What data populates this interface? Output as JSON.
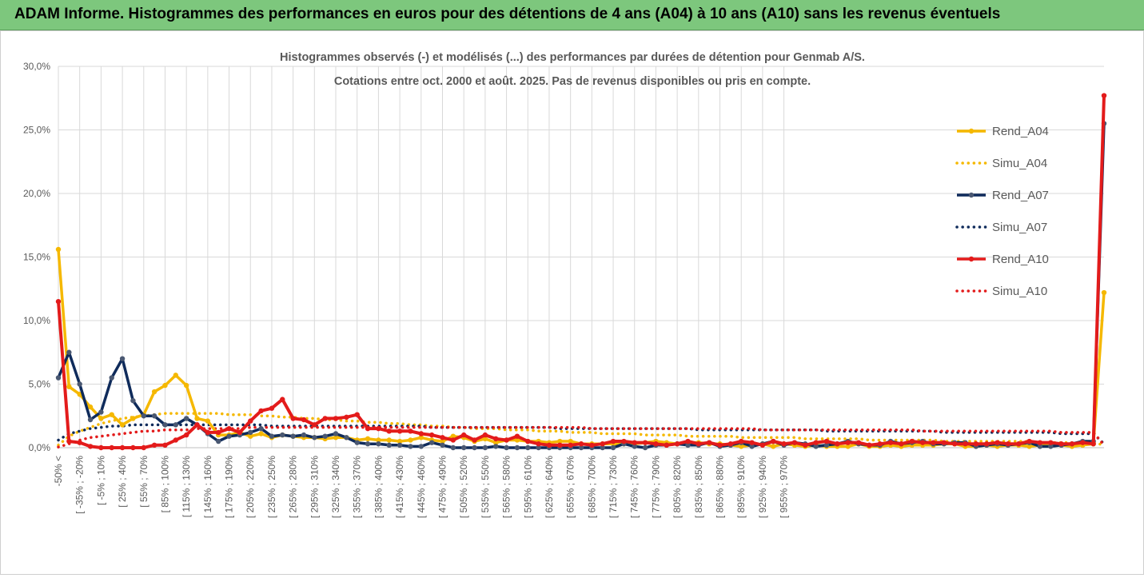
{
  "banner": {
    "title": "ADAM Informe. Histogrammes des performances en euros pour des détentions de 4 ans (A04) à 10 ans (A10) sans les revenus éventuels",
    "color": "#7dc77d"
  },
  "chart_data": {
    "type": "line",
    "title_line1": "Histogrammes observés (-) et modélisés (...) des performances par durées de détention pour Genmab A/S.",
    "title_line2": "Cotations entre oct. 2000 et août. 2025. Pas de revenus disponibles ou pris en compte.",
    "xlabel": "",
    "ylabel": "",
    "ylim": [
      0,
      30
    ],
    "y_ticks": [
      "0,0%",
      "5,0%",
      "10,0%",
      "15,0%",
      "20,0%",
      "25,0%",
      "30,0%"
    ],
    "grid": "vertical and horizontal",
    "legend_position": "right",
    "x_tick_labels": [
      "-50% <",
      "[ -35% ; -20%",
      "[ -5% ; 10%",
      "[ 25% ; 40%",
      "[ 55% ; 70%",
      "[ 85% ; 100%",
      "[ 115% ; 130%",
      "[ 145% ; 160%",
      "[ 175% ; 190%",
      "[ 205% ; 220%",
      "[ 235% ; 250%",
      "[ 265% ; 280%",
      "[ 295% ; 310%",
      "[ 325% ; 340%",
      "[ 355% ; 370%",
      "[ 385% ; 400%",
      "[ 415% ; 430%",
      "[ 445% ; 460%",
      "[ 475% ; 490%",
      "[ 505% ; 520%",
      "[ 535% ; 550%",
      "[ 565% ; 580%",
      "[ 595% ; 610%",
      "[ 625% ; 640%",
      "[ 655% ; 670%",
      "[ 685% ; 700%",
      "[ 715% ; 730%",
      "[ 745% ; 760%",
      "[ 775% ; 790%",
      "[ 805% ; 820%",
      "[ 835% ; 850%",
      "[ 865% ; 880%",
      "[ 895% ; 910%",
      "[ 925% ; 940%",
      "[ 955% ; 970%"
    ],
    "series": [
      {
        "name": "Rend_A04",
        "style": "solid",
        "marker": true,
        "color": "#f5b800",
        "values": [
          15.6,
          4.8,
          4.2,
          3.2,
          2.3,
          2.6,
          1.8,
          2.3,
          2.6,
          4.4,
          4.9,
          5.7,
          4.9,
          2.3,
          2.1,
          1.0,
          1.0,
          1.2,
          0.9,
          1.1,
          0.8,
          1.0,
          0.9,
          0.8,
          0.8,
          0.7,
          0.8,
          0.8,
          0.6,
          0.7,
          0.6,
          0.6,
          0.5,
          0.6,
          0.8,
          0.6,
          0.5,
          0.9,
          0.8,
          0.5,
          0.7,
          0.4,
          0.6,
          0.6,
          0.5,
          0.5,
          0.4,
          0.5,
          0.5,
          0.3,
          0.3,
          0.3,
          0.3,
          0.3,
          0.3,
          0.4,
          0.5,
          0.4,
          0.3,
          0.4,
          0.4,
          0.3,
          0.3,
          0.2,
          0.1,
          0.2,
          0.3,
          0.1,
          0.3,
          0.2,
          0.1,
          0.2,
          0.1,
          0.1,
          0.1,
          0.3,
          0.1,
          0.1,
          0.2,
          0.1,
          0.2,
          0.2,
          0.2,
          0.3,
          0.3,
          0.1,
          0.1,
          0.2,
          0.1,
          0.2,
          0.2,
          0.1,
          0.2,
          0.2,
          0.2,
          0.1,
          0.2,
          0.3,
          12.2
        ]
      },
      {
        "name": "Simu_A04",
        "style": "dotted",
        "marker": false,
        "color": "#f5b800",
        "values": [
          0.2,
          0.9,
          1.3,
          1.6,
          1.9,
          2.1,
          2.3,
          2.4,
          2.5,
          2.6,
          2.7,
          2.7,
          2.7,
          2.7,
          2.7,
          2.7,
          2.6,
          2.6,
          2.6,
          2.5,
          2.5,
          2.4,
          2.4,
          2.3,
          2.3,
          2.2,
          2.2,
          2.1,
          2.1,
          2.0,
          2.0,
          1.9,
          1.9,
          1.8,
          1.8,
          1.7,
          1.7,
          1.6,
          1.6,
          1.5,
          1.5,
          1.5,
          1.4,
          1.4,
          1.4,
          1.3,
          1.3,
          1.3,
          1.2,
          1.2,
          1.2,
          1.1,
          1.1,
          1.1,
          1.1,
          1.0,
          1.0,
          1.0,
          1.0,
          0.9,
          0.9,
          0.9,
          0.9,
          0.9,
          0.8,
          0.8,
          0.8,
          0.8,
          0.8,
          0.8,
          0.7,
          0.7,
          0.7,
          0.7,
          0.7,
          0.7,
          0.6,
          0.6,
          0.6,
          0.6,
          0.6,
          0.6,
          0.6,
          0.5,
          0.5,
          0.5,
          0.5,
          0.5,
          0.5,
          0.5,
          0.5,
          0.5,
          0.4,
          0.4,
          0.4,
          0.4,
          0.4,
          0.4,
          0.2
        ]
      },
      {
        "name": "Rend_A07",
        "style": "solid",
        "marker": true,
        "color": "#0f2b5b",
        "values": [
          5.5,
          7.5,
          5.0,
          2.2,
          2.8,
          5.5,
          7.0,
          3.7,
          2.5,
          2.5,
          1.8,
          1.8,
          2.3,
          1.8,
          1.1,
          0.5,
          0.9,
          1.0,
          1.2,
          1.5,
          0.9,
          1.0,
          0.9,
          1.0,
          0.8,
          0.9,
          1.1,
          0.8,
          0.4,
          0.3,
          0.3,
          0.2,
          0.2,
          0.1,
          0.1,
          0.4,
          0.2,
          0.0,
          0.0,
          0.0,
          0.0,
          0.1,
          0.0,
          0.0,
          0.0,
          0.0,
          0.0,
          0.0,
          0.0,
          0.0,
          0.0,
          0.0,
          0.0,
          0.3,
          0.1,
          0.0,
          0.2,
          0.2,
          0.3,
          0.2,
          0.2,
          0.4,
          0.1,
          0.2,
          0.4,
          0.1,
          0.3,
          0.5,
          0.2,
          0.4,
          0.3,
          0.1,
          0.2,
          0.3,
          0.5,
          0.3,
          0.2,
          0.2,
          0.5,
          0.3,
          0.4,
          0.5,
          0.3,
          0.3,
          0.4,
          0.4,
          0.1,
          0.2,
          0.3,
          0.2,
          0.3,
          0.4,
          0.1,
          0.1,
          0.2,
          0.3,
          0.5,
          0.5,
          25.5
        ]
      },
      {
        "name": "Simu_A07",
        "style": "dotted",
        "marker": false,
        "color": "#0f2b5b",
        "values": [
          0.6,
          1.1,
          1.3,
          1.5,
          1.6,
          1.7,
          1.7,
          1.8,
          1.8,
          1.8,
          1.8,
          1.8,
          1.8,
          1.8,
          1.8,
          1.8,
          1.8,
          1.8,
          1.8,
          1.8,
          1.7,
          1.7,
          1.7,
          1.7,
          1.7,
          1.7,
          1.7,
          1.7,
          1.7,
          1.7,
          1.7,
          1.7,
          1.7,
          1.7,
          1.7,
          1.6,
          1.6,
          1.6,
          1.6,
          1.6,
          1.6,
          1.6,
          1.6,
          1.6,
          1.6,
          1.6,
          1.6,
          1.5,
          1.5,
          1.5,
          1.5,
          1.5,
          1.5,
          1.5,
          1.5,
          1.5,
          1.5,
          1.5,
          1.5,
          1.5,
          1.4,
          1.4,
          1.4,
          1.4,
          1.4,
          1.4,
          1.4,
          1.4,
          1.4,
          1.4,
          1.4,
          1.4,
          1.3,
          1.3,
          1.3,
          1.3,
          1.3,
          1.3,
          1.3,
          1.3,
          1.3,
          1.3,
          1.3,
          1.2,
          1.2,
          1.2,
          1.2,
          1.2,
          1.2,
          1.2,
          1.2,
          1.2,
          1.2,
          1.2,
          1.1,
          1.1,
          1.1,
          1.1,
          0.3
        ]
      },
      {
        "name": "Rend_A10",
        "style": "solid",
        "marker": true,
        "color": "#e31b1b",
        "values": [
          11.5,
          0.5,
          0.4,
          0.1,
          0.0,
          0.0,
          0.0,
          0.0,
          0.0,
          0.2,
          0.2,
          0.6,
          1.0,
          1.8,
          1.2,
          1.2,
          1.5,
          1.2,
          2.1,
          2.9,
          3.1,
          3.8,
          2.3,
          2.2,
          1.8,
          2.3,
          2.3,
          2.4,
          2.6,
          1.5,
          1.5,
          1.3,
          1.3,
          1.3,
          1.1,
          1.0,
          0.8,
          0.6,
          1.0,
          0.6,
          1.0,
          0.7,
          0.6,
          0.9,
          0.5,
          0.3,
          0.2,
          0.2,
          0.2,
          0.3,
          0.2,
          0.3,
          0.5,
          0.5,
          0.4,
          0.4,
          0.3,
          0.2,
          0.3,
          0.5,
          0.3,
          0.4,
          0.2,
          0.3,
          0.5,
          0.4,
          0.2,
          0.5,
          0.3,
          0.4,
          0.2,
          0.4,
          0.5,
          0.3,
          0.4,
          0.4,
          0.2,
          0.3,
          0.4,
          0.3,
          0.5,
          0.4,
          0.4,
          0.4,
          0.3,
          0.3,
          0.3,
          0.3,
          0.4,
          0.3,
          0.3,
          0.5,
          0.4,
          0.4,
          0.3,
          0.3,
          0.4,
          0.3,
          27.7
        ]
      },
      {
        "name": "Simu_A10",
        "style": "dotted",
        "marker": false,
        "color": "#e31b1b",
        "values": [
          0.05,
          0.3,
          0.6,
          0.8,
          0.9,
          1.0,
          1.1,
          1.2,
          1.3,
          1.3,
          1.4,
          1.4,
          1.4,
          1.5,
          1.5,
          1.5,
          1.5,
          1.5,
          1.6,
          1.6,
          1.6,
          1.6,
          1.6,
          1.6,
          1.6,
          1.6,
          1.6,
          1.6,
          1.6,
          1.6,
          1.6,
          1.6,
          1.6,
          1.6,
          1.6,
          1.6,
          1.6,
          1.6,
          1.6,
          1.6,
          1.6,
          1.6,
          1.6,
          1.6,
          1.6,
          1.6,
          1.6,
          1.6,
          1.6,
          1.6,
          1.5,
          1.5,
          1.5,
          1.5,
          1.5,
          1.5,
          1.5,
          1.5,
          1.5,
          1.5,
          1.5,
          1.5,
          1.5,
          1.5,
          1.5,
          1.5,
          1.4,
          1.4,
          1.4,
          1.4,
          1.4,
          1.4,
          1.4,
          1.4,
          1.4,
          1.4,
          1.4,
          1.4,
          1.4,
          1.4,
          1.4,
          1.3,
          1.3,
          1.3,
          1.3,
          1.3,
          1.3,
          1.3,
          1.3,
          1.3,
          1.3,
          1.3,
          1.3,
          1.3,
          1.2,
          1.2,
          1.2,
          1.2,
          0.2
        ]
      }
    ]
  }
}
